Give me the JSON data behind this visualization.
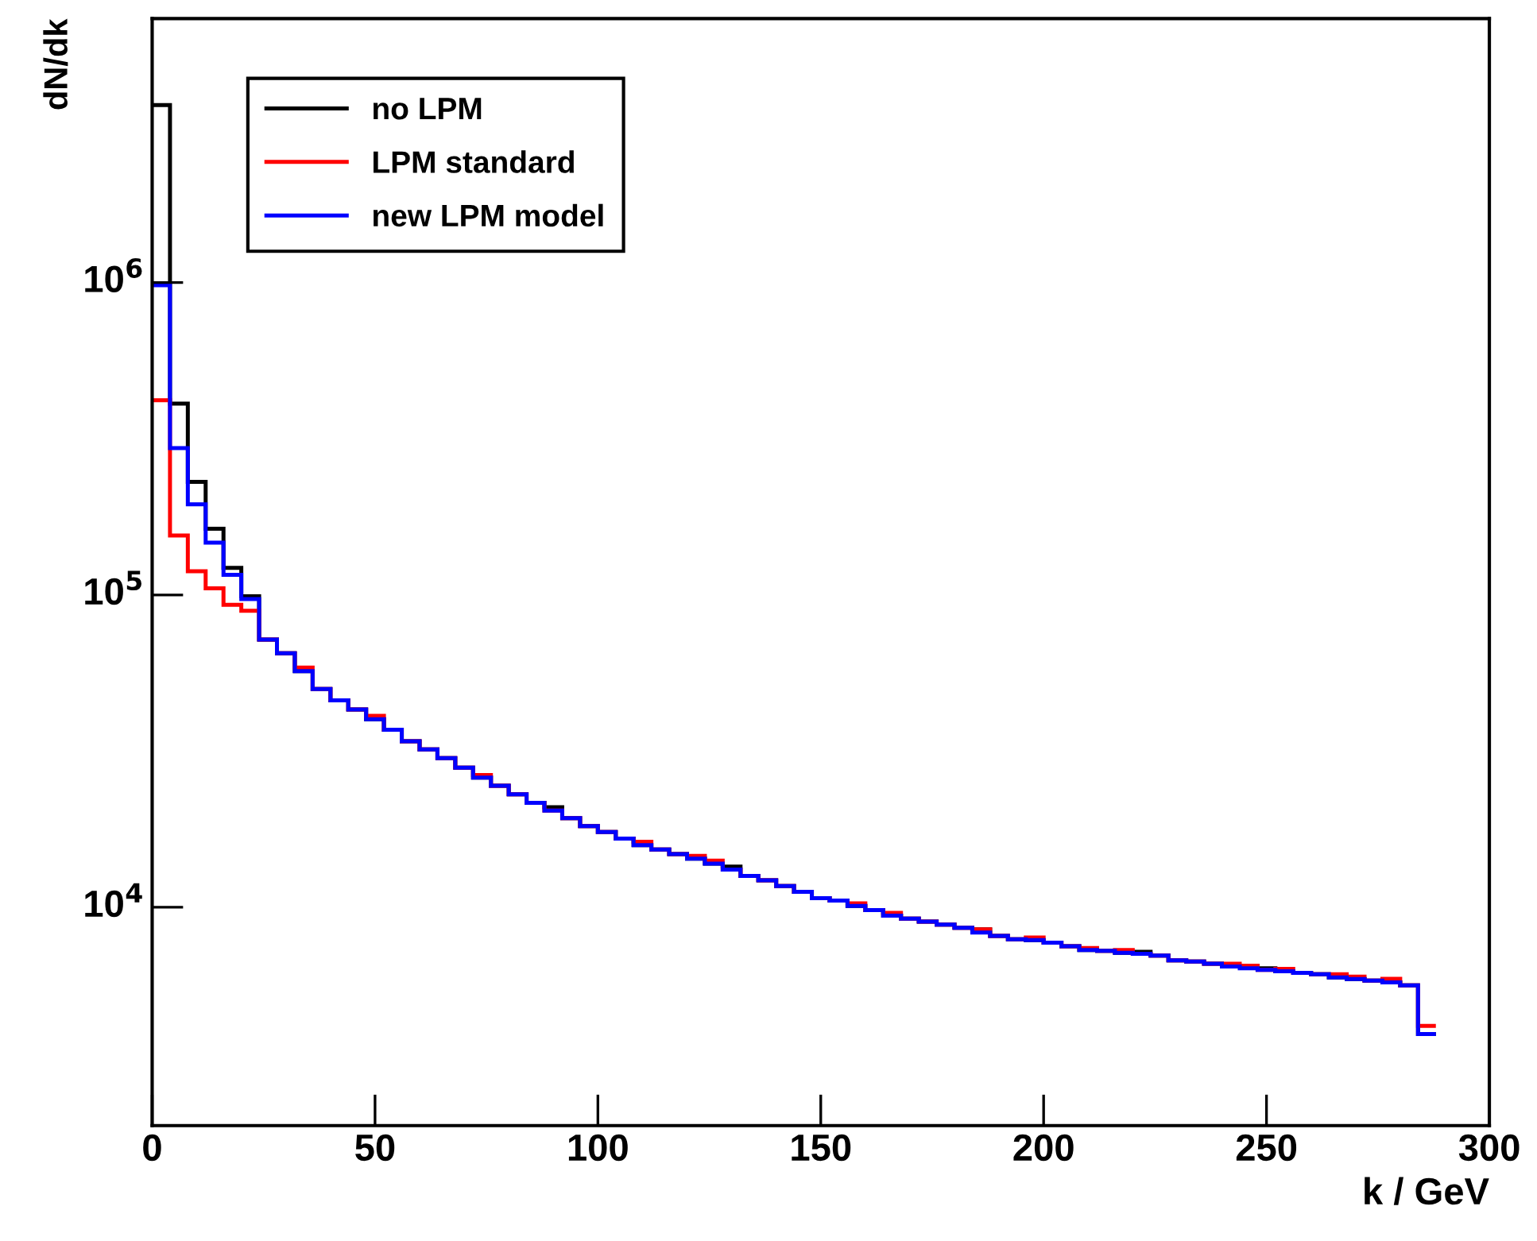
{
  "chart_data": {
    "type": "histogram",
    "xlabel": "k / GeV",
    "ylabel": "dN/dk",
    "log": "y",
    "bins": [
      0,
      4,
      8,
      12,
      16,
      20,
      24,
      28,
      32,
      36,
      40,
      44,
      48,
      52,
      56,
      60,
      64,
      68,
      72,
      76,
      80,
      84,
      88,
      92,
      96,
      100,
      104,
      108,
      112,
      116,
      120,
      124,
      128,
      132,
      136,
      140,
      144,
      148,
      152,
      156,
      160,
      164,
      168,
      172,
      176,
      180,
      184,
      188,
      192,
      196,
      200,
      204,
      208,
      212,
      216,
      220,
      224,
      228,
      232,
      236,
      240,
      244,
      248,
      252,
      256,
      260,
      264,
      268,
      272,
      276,
      280,
      284,
      288
    ],
    "series": [
      {
        "name": "no LPM",
        "color": "#000000",
        "values": [
          3700000,
          410000,
          230000,
          163000,
          122000,
          99000,
          72000,
          65000,
          57000,
          50000,
          46000,
          43000,
          40000,
          37000,
          34000,
          32000,
          30000,
          28000,
          26000,
          24500,
          23000,
          21600,
          20900,
          19300,
          18200,
          17400,
          16600,
          15800,
          15300,
          14800,
          14300,
          13800,
          13500,
          12600,
          12200,
          11700,
          11200,
          10700,
          10500,
          10100,
          9800,
          9400,
          9200,
          9000,
          8800,
          8600,
          8500,
          8100,
          7900,
          7850,
          7700,
          7500,
          7300,
          7250,
          7150,
          7200,
          7000,
          6760,
          6700,
          6600,
          6460,
          6500,
          6380,
          6240,
          6170,
          6100,
          5960,
          5890,
          5820,
          5750,
          5620,
          3930
        ]
      },
      {
        "name": "LPM standard",
        "color": "#ff0000",
        "values": [
          420000,
          155000,
          119000,
          105000,
          93000,
          89000,
          72000,
          65000,
          58500,
          50000,
          46000,
          43000,
          41000,
          37000,
          34000,
          32000,
          30000,
          28000,
          26500,
          24500,
          23000,
          21600,
          20400,
          19300,
          18200,
          17400,
          16600,
          16200,
          15300,
          14800,
          14600,
          14100,
          13200,
          12600,
          12200,
          11700,
          11200,
          10700,
          10500,
          10300,
          9800,
          9600,
          9200,
          9000,
          8800,
          8600,
          8500,
          8100,
          7900,
          8000,
          7700,
          7500,
          7400,
          7250,
          7300,
          7100,
          7000,
          6760,
          6700,
          6600,
          6600,
          6500,
          6300,
          6350,
          6170,
          6100,
          6100,
          6000,
          5820,
          5900,
          5620,
          4170
        ]
      },
      {
        "name": "new LPM model",
        "color": "#0000ff",
        "values": [
          980000,
          295000,
          195000,
          147000,
          116000,
          97000,
          72000,
          65000,
          57000,
          50000,
          46000,
          43000,
          40000,
          37000,
          34000,
          32000,
          30000,
          28000,
          26000,
          24500,
          23000,
          21600,
          20400,
          19300,
          18200,
          17400,
          16600,
          15800,
          15300,
          14800,
          14300,
          13800,
          13200,
          12600,
          12200,
          11700,
          11200,
          10700,
          10500,
          10100,
          9800,
          9400,
          9200,
          9000,
          8800,
          8600,
          8300,
          8100,
          7900,
          7850,
          7700,
          7500,
          7300,
          7250,
          7150,
          7100,
          7000,
          6760,
          6700,
          6600,
          6460,
          6380,
          6300,
          6240,
          6170,
          6100,
          5960,
          5890,
          5820,
          5750,
          5620,
          3930
        ]
      }
    ],
    "xlim": [
      0,
      300
    ],
    "xticks": [
      0,
      50,
      100,
      150,
      200,
      250,
      300
    ],
    "ylim": [
      2000,
      7000000
    ],
    "yticks": [
      {
        "value": 10000,
        "label": "10$^{4}$"
      },
      {
        "value": 100000,
        "label": "10$^{5}$"
      },
      {
        "value": 1000000,
        "label": "10$^{6}$"
      }
    ],
    "legend": "top left",
    "grid": false
  }
}
